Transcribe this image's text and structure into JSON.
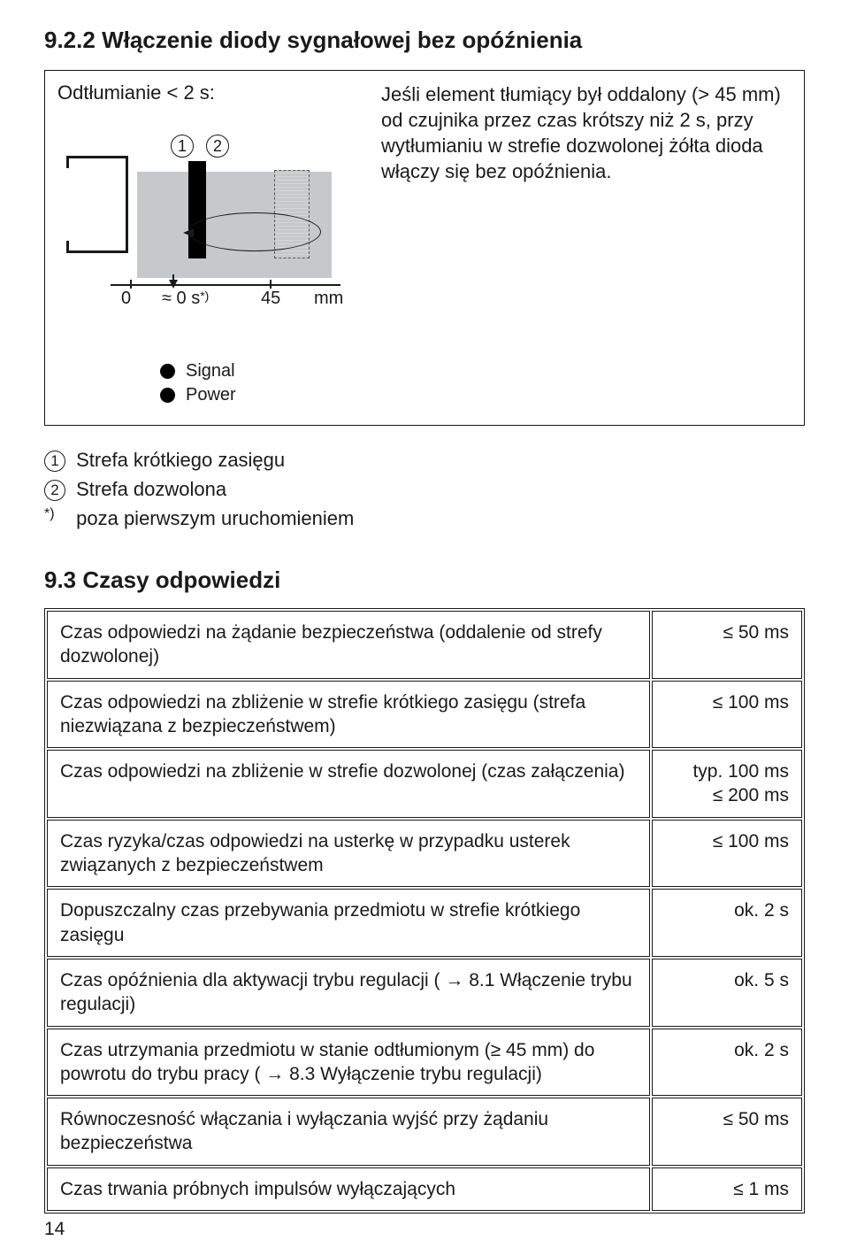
{
  "section": {
    "num": "9.2.2",
    "title": "Włączenie diody sygnałowej bez opóźnienia"
  },
  "figure": {
    "caption": "Odtłumianie < 2 s:",
    "desc": "Jeśli element tłumiący był oddalony (> 45 mm) od czujnika przez czas krótszy niż 2 s, przy wytłumianiu w strefie dozwolonej żółta dioda włączy się bez opóźnienia.",
    "circ1": "1",
    "circ2": "2",
    "axis": {
      "zero": "0",
      "time": "≈ 0 s",
      "star": "*)",
      "v45": "45",
      "mm": "mm"
    },
    "legend": {
      "signal": "Signal",
      "power": "Power"
    }
  },
  "notes": {
    "n1_label": "①",
    "n1": "Strefa krótkiego zasięgu",
    "n2_label": "②",
    "n2": "Strefa dozwolona",
    "n3_label": "*)",
    "n3": "poza pierwszym uruchomieniem"
  },
  "section2": {
    "num": "9.3",
    "title": "Czasy odpowiedzi"
  },
  "rows": [
    {
      "label": "Czas odpowiedzi na żądanie bezpieczeństwa (oddalenie od strefy dozwolonej)",
      "value": "≤ 50 ms"
    },
    {
      "label": "Czas odpowiedzi na zbliżenie w strefie krótkiego zasięgu (strefa niezwiązana z bezpieczeństwem)",
      "value": "≤ 100 ms"
    },
    {
      "label": "Czas odpowiedzi na zbliżenie w strefie dozwolonej (czas załączenia)",
      "value": "typ. 100 ms\n≤ 200 ms"
    },
    {
      "label": "Czas ryzyka/czas odpowiedzi na usterkę w przypadku usterek związanych z bezpieczeństwem",
      "value": "≤ 100 ms"
    },
    {
      "label": "Dopuszczalny czas przebywania przedmiotu w strefie krótkiego zasięgu",
      "value": "ok. 2 s"
    },
    {
      "label": "Czas opóźnienia dla aktywacji trybu regulacji ( → 8.1 Włączenie trybu regulacji)",
      "value": "ok. 5 s"
    },
    {
      "label": "Czas utrzymania przedmiotu w stanie odtłumionym (≥ 45 mm) do powrotu do trybu pracy ( → 8.3 Wyłączenie trybu regulacji)",
      "value": "ok. 2 s"
    },
    {
      "label": "Równoczesność włączania i wyłączania wyjść przy żądaniu bezpieczeństwa",
      "value": "≤ 50 ms"
    },
    {
      "label": "Czas trwania próbnych impulsów wyłączających",
      "value": "≤ 1 ms"
    }
  ],
  "page": "14"
}
